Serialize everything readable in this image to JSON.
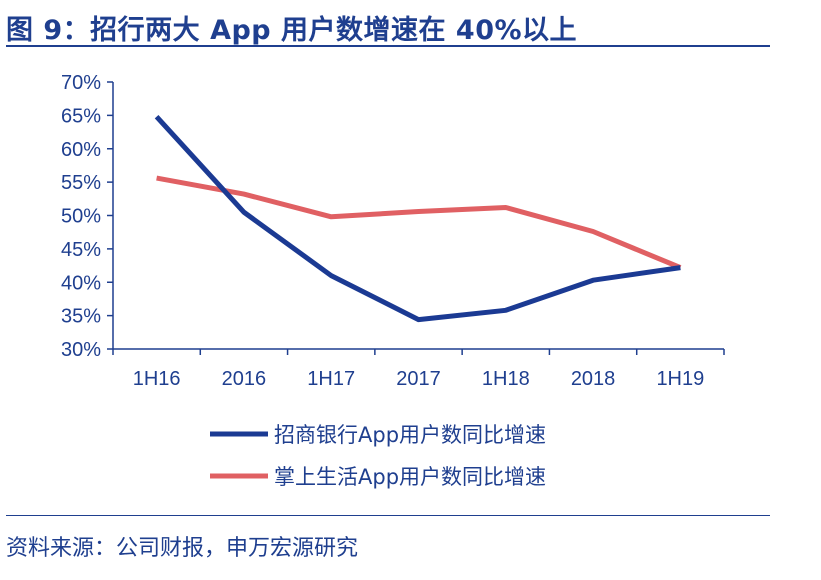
{
  "header": {
    "title": "图 9：招行两大 App 用户数增速在 40%以上"
  },
  "footer": {
    "source": "资料来源：公司财报，申万宏源研究"
  },
  "colors": {
    "brand": "#1f3f8f",
    "series_cmb": "#1b3a93",
    "series_life": "#e06063"
  },
  "chart_data": {
    "type": "line",
    "title": "招行两大 App 用户数增速在 40%以上",
    "categories": [
      "1H16",
      "2016",
      "1H17",
      "2017",
      "1H18",
      "2018",
      "1H19"
    ],
    "y_ticks": [
      "30%",
      "35%",
      "40%",
      "45%",
      "50%",
      "55%",
      "60%",
      "65%",
      "70%"
    ],
    "ylim": [
      30,
      70
    ],
    "y_unit": "%",
    "grid": false,
    "legend_position": "bottom",
    "series": [
      {
        "name": "招商银行App用户数同比增速",
        "color": "#1b3a93",
        "values": [
          64.8,
          50.5,
          41.0,
          34.4,
          35.8,
          40.3,
          42.2
        ]
      },
      {
        "name": "掌上生活App用户数同比增速",
        "color": "#e06063",
        "values": [
          55.6,
          53.2,
          49.8,
          50.6,
          51.2,
          47.6,
          42.2
        ]
      }
    ]
  }
}
